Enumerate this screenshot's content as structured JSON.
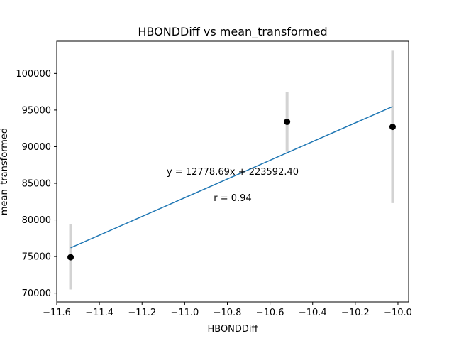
{
  "chart_data": {
    "type": "scatter",
    "title": "HBONDDiff vs mean_transformed",
    "xlabel": "HBONDDiff",
    "ylabel": "mean_transformed",
    "xlim": [
      -11.6,
      -9.95
    ],
    "ylim": [
      68800,
      104400
    ],
    "xticks": [
      -11.6,
      -11.4,
      -11.2,
      -11.0,
      -10.8,
      -10.6,
      -10.4,
      -10.2,
      -10.0
    ],
    "xtick_labels": [
      "−11.6",
      "−11.4",
      "−11.2",
      "−11.0",
      "−10.8",
      "−10.6",
      "−10.4",
      "−10.2",
      "−10.0"
    ],
    "yticks": [
      70000,
      75000,
      80000,
      85000,
      90000,
      95000,
      100000
    ],
    "ytick_labels": [
      "70000",
      "75000",
      "80000",
      "85000",
      "90000",
      "95000",
      "100000"
    ],
    "grid": false,
    "points": [
      {
        "x": -11.535,
        "y": 74900,
        "yerr_low": 70500,
        "yerr_high": 79400
      },
      {
        "x": -10.52,
        "y": 93400,
        "yerr_low": 89300,
        "yerr_high": 97500
      },
      {
        "x": -10.025,
        "y": 92700,
        "yerr_low": 82300,
        "yerr_high": 103100
      }
    ],
    "fit_line": {
      "slope": 12778.69,
      "intercept": 223592.4,
      "x_start": -11.535,
      "x_end": -10.025
    },
    "annotations": {
      "equation": "y = 12778.69x + 223592.40",
      "r_value": "r = 0.94"
    },
    "colors": {
      "points": "#000000",
      "error_bars": "#d3d3d3",
      "fit_line": "#1f77b4"
    }
  }
}
